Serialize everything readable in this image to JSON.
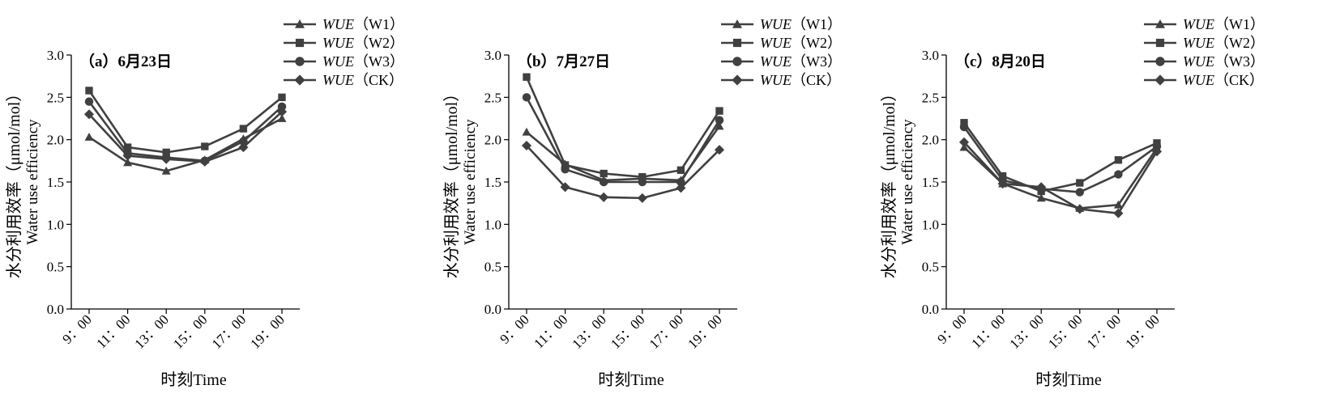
{
  "chart_data": [
    {
      "type": "line",
      "panel_title": "（a）6月23日",
      "categories": [
        "9：00",
        "11：00",
        "13：00",
        "15：00",
        "17：00",
        "19：00"
      ],
      "xlabel": "时刻Time",
      "ylabel_zh": "水分利用效率（μmol/mol）",
      "ylabel_en": "Water use efficiency",
      "ylim": [
        0,
        3.0
      ],
      "yticks": [
        "0.0",
        "0.5",
        "1.0",
        "1.5",
        "2.0",
        "2.5",
        "3.0"
      ],
      "legend_position": "top-right",
      "series": [
        {
          "name": "WUE（W1）",
          "marker": "triangle",
          "values": [
            2.03,
            1.73,
            1.63,
            1.76,
            2.01,
            2.25
          ]
        },
        {
          "name": "WUE（W2）",
          "marker": "square",
          "values": [
            2.58,
            1.91,
            1.85,
            1.92,
            2.13,
            2.5
          ]
        },
        {
          "name": "WUE（W3）",
          "marker": "circle",
          "values": [
            2.45,
            1.84,
            1.79,
            1.75,
            1.98,
            2.39
          ]
        },
        {
          "name": "WUE（CK）",
          "marker": "diamond",
          "values": [
            2.3,
            1.81,
            1.77,
            1.74,
            1.91,
            2.33
          ]
        }
      ]
    },
    {
      "type": "line",
      "panel_title": "（b）7月27日",
      "categories": [
        "9：00",
        "11：00",
        "13：00",
        "15：00",
        "17：00",
        "19：00"
      ],
      "xlabel": "时刻Time",
      "ylabel_zh": "水分利用效率（μmol/mol）",
      "ylabel_en": "Water use efficiency",
      "ylim": [
        0,
        3.0
      ],
      "yticks": [
        "0.0",
        "0.5",
        "1.0",
        "1.5",
        "2.0",
        "2.5",
        "3.0"
      ],
      "legend_position": "top-right",
      "series": [
        {
          "name": "WUE（W1）",
          "marker": "triangle",
          "values": [
            2.09,
            1.71,
            1.52,
            1.54,
            1.52,
            2.16
          ]
        },
        {
          "name": "WUE（W2）",
          "marker": "square",
          "values": [
            2.74,
            1.7,
            1.6,
            1.56,
            1.64,
            2.34
          ]
        },
        {
          "name": "WUE（W3）",
          "marker": "circle",
          "values": [
            2.5,
            1.65,
            1.5,
            1.5,
            1.5,
            2.23
          ]
        },
        {
          "name": "WUE（CK）",
          "marker": "diamond",
          "values": [
            1.93,
            1.44,
            1.32,
            1.31,
            1.43,
            1.88
          ]
        }
      ]
    },
    {
      "type": "line",
      "panel_title": "（c）8月20日",
      "categories": [
        "9：00",
        "11：00",
        "13：00",
        "15：00",
        "17：00",
        "19：00"
      ],
      "xlabel": "时刻Time",
      "ylabel_zh": "水分利用效率（μmol/mol）",
      "ylabel_en": "Water use efficiency",
      "ylim": [
        0,
        3.0
      ],
      "yticks": [
        "0.0",
        "0.5",
        "1.0",
        "1.5",
        "2.0",
        "2.5",
        "3.0"
      ],
      "legend_position": "top-right",
      "series": [
        {
          "name": "WUE（W1）",
          "marker": "triangle",
          "values": [
            1.91,
            1.48,
            1.31,
            1.19,
            1.23,
            1.9
          ]
        },
        {
          "name": "WUE（W2）",
          "marker": "square",
          "values": [
            2.2,
            1.57,
            1.39,
            1.49,
            1.76,
            1.96
          ]
        },
        {
          "name": "WUE（W3）",
          "marker": "circle",
          "values": [
            2.15,
            1.52,
            1.42,
            1.38,
            1.59,
            1.92
          ]
        },
        {
          "name": "WUE（CK）",
          "marker": "diamond",
          "values": [
            1.97,
            1.48,
            1.44,
            1.18,
            1.13,
            1.86
          ]
        }
      ]
    }
  ],
  "colors": {
    "line": "#404040",
    "axis": "#000000"
  }
}
